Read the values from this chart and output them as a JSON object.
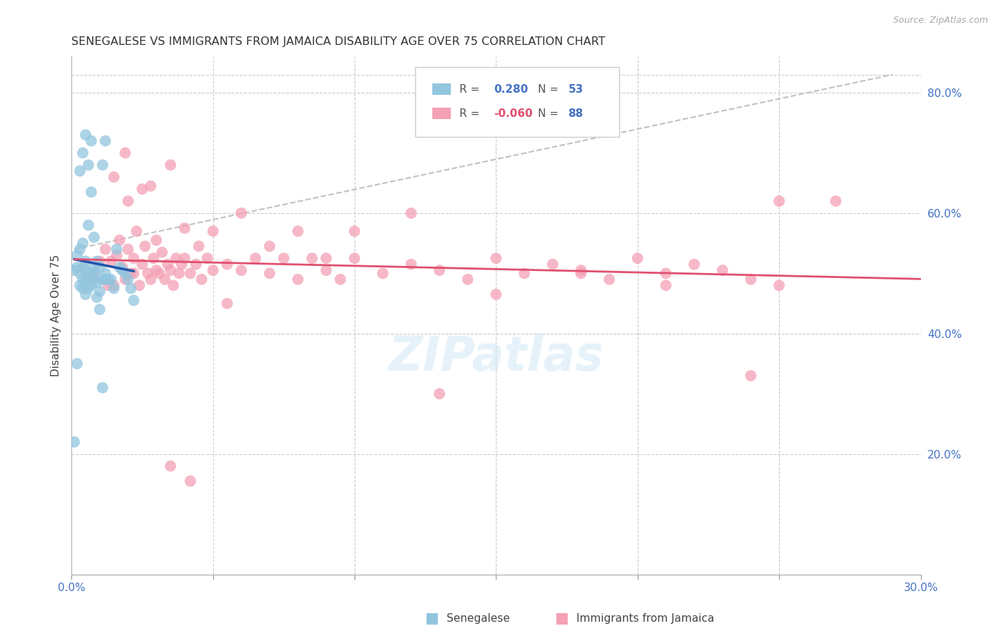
{
  "title": "SENEGALESE VS IMMIGRANTS FROM JAMAICA DISABILITY AGE OVER 75 CORRELATION CHART",
  "source": "Source: ZipAtlas.com",
  "ylabel": "Disability Age Over 75",
  "x_min": 0.0,
  "x_max": 0.3,
  "y_min": 0.0,
  "y_max": 0.86,
  "blue_R": 0.28,
  "blue_N": 53,
  "pink_R": -0.06,
  "pink_N": 88,
  "blue_color": "#92c5de",
  "blue_line_color": "#2255aa",
  "pink_color": "#f4a0b5",
  "pink_line_color": "#e05070",
  "ref_line_color": "#bbbbbb",
  "grid_color": "#cccccc",
  "watermark": "ZIPatlas",
  "legend_label_blue": "Senegalese",
  "legend_label_pink": "Immigrants from Jamaica",
  "blue_scatter_x": [
    0.001,
    0.002,
    0.002,
    0.003,
    0.003,
    0.003,
    0.004,
    0.004,
    0.004,
    0.004,
    0.005,
    0.005,
    0.005,
    0.005,
    0.006,
    0.006,
    0.006,
    0.007,
    0.007,
    0.007,
    0.008,
    0.008,
    0.008,
    0.009,
    0.009,
    0.01,
    0.01,
    0.011,
    0.011,
    0.012,
    0.012,
    0.013,
    0.014,
    0.015,
    0.016,
    0.017,
    0.018,
    0.019,
    0.02,
    0.021,
    0.022,
    0.001,
    0.002,
    0.003,
    0.004,
    0.005,
    0.006,
    0.007,
    0.008,
    0.009,
    0.01,
    0.011,
    0.012
  ],
  "blue_scatter_y": [
    0.505,
    0.51,
    0.53,
    0.48,
    0.5,
    0.54,
    0.475,
    0.49,
    0.51,
    0.55,
    0.465,
    0.485,
    0.505,
    0.52,
    0.475,
    0.495,
    0.58,
    0.48,
    0.5,
    0.635,
    0.49,
    0.51,
    0.56,
    0.485,
    0.52,
    0.47,
    0.51,
    0.68,
    0.49,
    0.49,
    0.72,
    0.49,
    0.49,
    0.475,
    0.54,
    0.51,
    0.505,
    0.5,
    0.49,
    0.475,
    0.455,
    0.22,
    0.35,
    0.67,
    0.7,
    0.73,
    0.68,
    0.72,
    0.5,
    0.46,
    0.44,
    0.31,
    0.5
  ],
  "pink_scatter_x": [
    0.008,
    0.01,
    0.012,
    0.013,
    0.014,
    0.015,
    0.016,
    0.017,
    0.018,
    0.019,
    0.02,
    0.021,
    0.022,
    0.023,
    0.024,
    0.025,
    0.026,
    0.027,
    0.028,
    0.029,
    0.03,
    0.031,
    0.032,
    0.033,
    0.034,
    0.035,
    0.036,
    0.037,
    0.038,
    0.039,
    0.04,
    0.042,
    0.044,
    0.046,
    0.048,
    0.05,
    0.055,
    0.06,
    0.065,
    0.07,
    0.075,
    0.08,
    0.085,
    0.09,
    0.095,
    0.1,
    0.11,
    0.12,
    0.13,
    0.14,
    0.15,
    0.16,
    0.17,
    0.18,
    0.19,
    0.2,
    0.21,
    0.22,
    0.23,
    0.24,
    0.25,
    0.015,
    0.02,
    0.025,
    0.03,
    0.035,
    0.04,
    0.045,
    0.05,
    0.06,
    0.07,
    0.08,
    0.09,
    0.1,
    0.12,
    0.15,
    0.18,
    0.21,
    0.24,
    0.27,
    0.019,
    0.022,
    0.028,
    0.035,
    0.042,
    0.055,
    0.13,
    0.25
  ],
  "pink_scatter_y": [
    0.5,
    0.52,
    0.54,
    0.48,
    0.52,
    0.48,
    0.53,
    0.555,
    0.51,
    0.49,
    0.54,
    0.5,
    0.525,
    0.57,
    0.48,
    0.515,
    0.545,
    0.5,
    0.49,
    0.525,
    0.505,
    0.5,
    0.535,
    0.49,
    0.515,
    0.505,
    0.48,
    0.525,
    0.5,
    0.515,
    0.525,
    0.5,
    0.515,
    0.49,
    0.525,
    0.505,
    0.515,
    0.505,
    0.525,
    0.5,
    0.525,
    0.49,
    0.525,
    0.505,
    0.49,
    0.525,
    0.5,
    0.515,
    0.505,
    0.49,
    0.525,
    0.5,
    0.515,
    0.505,
    0.49,
    0.525,
    0.5,
    0.515,
    0.505,
    0.49,
    0.48,
    0.66,
    0.62,
    0.64,
    0.555,
    0.68,
    0.575,
    0.545,
    0.57,
    0.6,
    0.545,
    0.57,
    0.525,
    0.57,
    0.6,
    0.465,
    0.5,
    0.48,
    0.33,
    0.62,
    0.7,
    0.5,
    0.645,
    0.18,
    0.155,
    0.45,
    0.3,
    0.62
  ]
}
